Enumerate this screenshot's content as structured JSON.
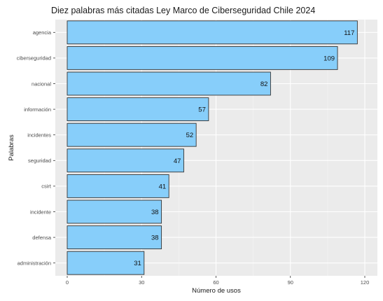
{
  "chart_data": {
    "type": "bar",
    "orientation": "horizontal",
    "title": "Diez palabras más citadas Ley Marco de Ciberseguridad Chile 2024",
    "xlabel": "Número de usos",
    "ylabel": "Palabras",
    "categories": [
      "agencia",
      "ciberseguridad",
      "nacional",
      "información",
      "incidentes",
      "seguridad",
      "csirt",
      "incidente",
      "defensa",
      "administración"
    ],
    "values": [
      117,
      109,
      82,
      57,
      52,
      47,
      41,
      38,
      38,
      31
    ],
    "xlim": [
      0,
      120
    ],
    "xticks": [
      "0",
      "30",
      "60",
      "90",
      "120"
    ],
    "grid": true,
    "legend": "none",
    "colors": {
      "bar_fill": "#87CEFA",
      "bar_stroke": "#333333",
      "panel_background": "#EBEBEB",
      "grid_major": "#FFFFFF",
      "grid_minor": "#F5F5F5"
    }
  }
}
